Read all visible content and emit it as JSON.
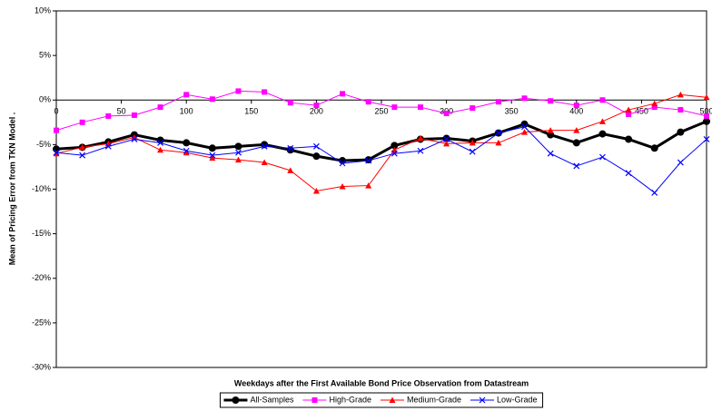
{
  "chart_data": {
    "type": "line",
    "x_title": "Weekdays after the First Available Bond Price Observation from Datastream",
    "y_title": "Mean of Pricing Error from TKN Model .",
    "x": [
      0,
      20,
      40,
      60,
      80,
      100,
      120,
      140,
      160,
      180,
      200,
      220,
      240,
      260,
      280,
      300,
      320,
      340,
      360,
      380,
      400,
      420,
      440,
      460,
      480,
      500
    ],
    "xlim": [
      0,
      500
    ],
    "xticks": [
      0,
      50,
      100,
      150,
      200,
      250,
      300,
      350,
      400,
      450,
      500
    ],
    "ylim": [
      -30,
      10
    ],
    "yticks": [
      {
        "value": -30,
        "label": "-30%"
      },
      {
        "value": -25,
        "label": "-25%"
      },
      {
        "value": -20,
        "label": "-20%"
      },
      {
        "value": -15,
        "label": "-15%"
      },
      {
        "value": -10,
        "label": "-10%"
      },
      {
        "value": -5,
        "label": "-5%"
      },
      {
        "value": 0,
        "label": "0%"
      },
      {
        "value": 5,
        "label": "5%"
      },
      {
        "value": 10,
        "label": "10%"
      }
    ],
    "legend": "bottom",
    "series": [
      {
        "name": "All-Samples",
        "color": "#000000",
        "marker": "circle",
        "values": [
          -5.5,
          -5.3,
          -4.7,
          -3.9,
          -4.5,
          -4.8,
          -5.4,
          -5.2,
          -5.0,
          -5.6,
          -6.3,
          -6.8,
          -6.7,
          -5.1,
          -4.4,
          -4.3,
          -4.6,
          -3.7,
          -2.7,
          -3.9,
          -4.8,
          -3.8,
          -4.4,
          -5.4,
          -3.6,
          -2.4
        ]
      },
      {
        "name": "High-Grade",
        "color": "#ff00ff",
        "marker": "square",
        "values": [
          -3.4,
          -2.5,
          -1.8,
          -1.7,
          -0.8,
          0.6,
          0.1,
          1.0,
          0.9,
          -0.3,
          -0.6,
          0.7,
          -0.2,
          -0.8,
          -0.8,
          -1.5,
          -0.9,
          -0.2,
          0.2,
          -0.1,
          -0.6,
          0.0,
          -1.6,
          -0.8,
          -1.1,
          -1.8
        ]
      },
      {
        "name": "Medium-Grade",
        "color": "#ff0000",
        "marker": "triangle",
        "values": [
          -6.0,
          -5.3,
          -4.9,
          -4.2,
          -5.6,
          -5.9,
          -6.5,
          -6.7,
          -7.0,
          -7.9,
          -10.2,
          -9.7,
          -9.6,
          -5.6,
          -4.3,
          -4.9,
          -4.8,
          -4.8,
          -3.6,
          -3.4,
          -3.4,
          -2.4,
          -1.1,
          -0.4,
          0.6,
          0.3
        ]
      },
      {
        "name": "Low-Grade",
        "color": "#0000ff",
        "marker": "x",
        "values": [
          -5.9,
          -6.2,
          -5.2,
          -4.4,
          -4.8,
          -5.7,
          -6.2,
          -5.9,
          -5.2,
          -5.4,
          -5.2,
          -7.1,
          -6.8,
          -6.0,
          -5.7,
          -4.4,
          -5.8,
          -3.7,
          -3.0,
          -6.0,
          -7.4,
          -6.4,
          -8.2,
          -10.4,
          -7.0,
          -4.4
        ]
      }
    ]
  }
}
